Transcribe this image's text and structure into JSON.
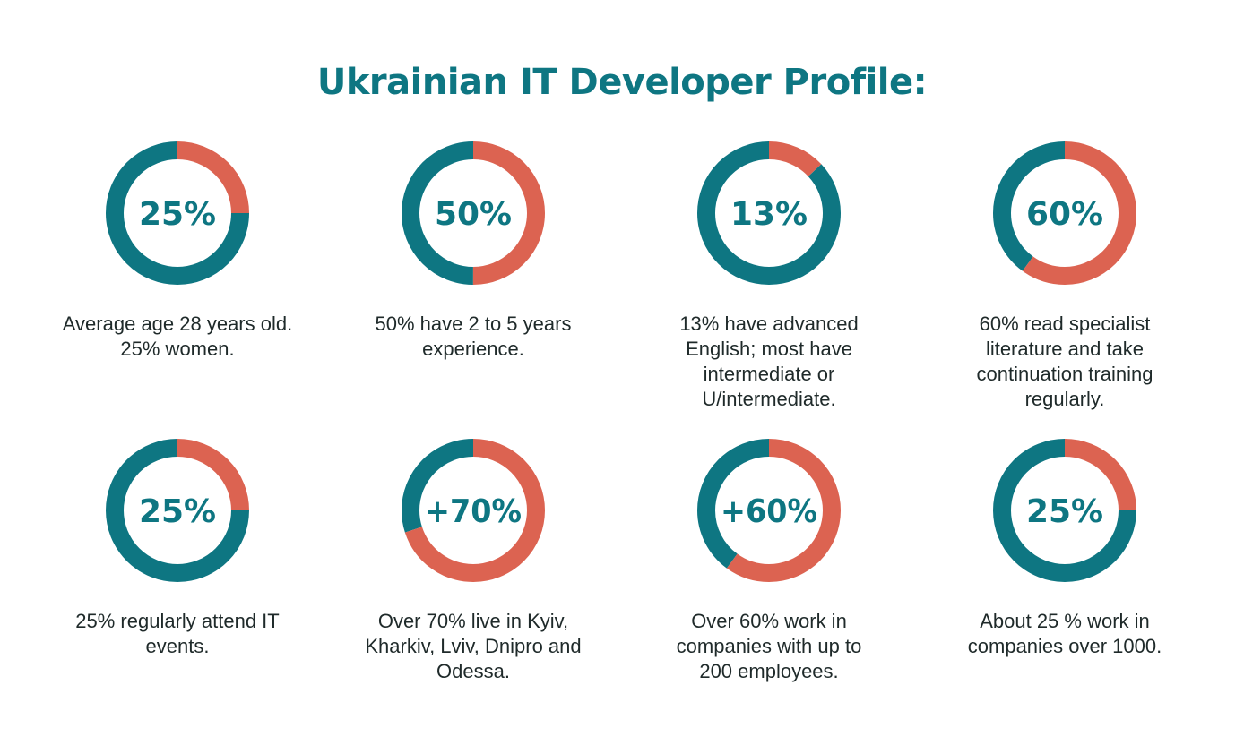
{
  "title": "Ukrainian IT Developer Profile:",
  "colors": {
    "teal": "#0e7682",
    "coral": "#dc6351",
    "text": "#1f2a2a"
  },
  "chart_data": [
    {
      "type": "pie",
      "label": "25%",
      "values": [
        25,
        75
      ],
      "description": "Average age 28 years old.\n25% women."
    },
    {
      "type": "pie",
      "label": "50%",
      "values": [
        50,
        50
      ],
      "description": "50% have 2 to 5 years\nexperience."
    },
    {
      "type": "pie",
      "label": "13%",
      "values": [
        13,
        87
      ],
      "description": "13% have advanced\nEnglish; most have\nintermediate or\nU/intermediate."
    },
    {
      "type": "pie",
      "label": "60%",
      "values": [
        60,
        40
      ],
      "description": "60% read specialist\nliterature and take\ncontinuation training\nregularly."
    },
    {
      "type": "pie",
      "label": "25%",
      "values": [
        25,
        75
      ],
      "description": "25%  regularly attend IT\nevents."
    },
    {
      "type": "pie",
      "label": "+70%",
      "values": [
        70,
        30
      ],
      "description": "Over 70% live in Kyiv,\nKharkiv, Lviv, Dnipro and\nOdessa."
    },
    {
      "type": "pie",
      "label": "+60%",
      "values": [
        60,
        40
      ],
      "description": "Over 60% work in\ncompanies with up to\n200 employees."
    },
    {
      "type": "pie",
      "label": "25%",
      "values": [
        25,
        75
      ],
      "description": "About 25 % work in\ncompanies over 1000."
    }
  ]
}
